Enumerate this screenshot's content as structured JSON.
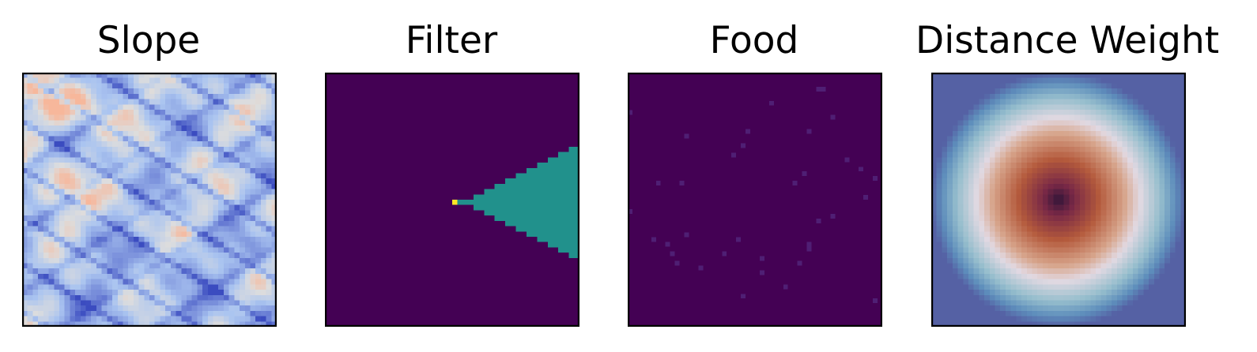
{
  "figure": {
    "background": "#ffffff"
  },
  "chart_data": [
    {
      "type": "heatmap",
      "title": "Slope",
      "grid_size": 48,
      "colormap": "coolwarm",
      "axes_visible": false,
      "description_of_field": "mostly light blue noisy terrain with darker blue ridges and faint orange patches in the upper-left and left-middle",
      "colors": {
        "low": "#3b4cc0",
        "mid": "#dddddd",
        "high": "#f7b79b"
      }
    },
    {
      "type": "heatmap",
      "title": "Filter",
      "grid_size": 48,
      "colormap": "viridis",
      "axes_visible": false,
      "colors": {
        "background": "#440154",
        "cone": "#21918c",
        "agent": "#fde725"
      },
      "agent_cell": {
        "col": 24,
        "row": 24
      },
      "cone": {
        "apex_col": 26,
        "end_col": 47,
        "half_width_at_end": 10,
        "center_row": 24
      }
    },
    {
      "type": "heatmap",
      "title": "Food",
      "grid_size": 48,
      "colormap": "viridis",
      "axes_visible": false,
      "colors": {
        "background": "#440154",
        "food": "#4f1f74"
      },
      "food_cells": [
        [
          30,
          6
        ],
        [
          40,
          3
        ],
        [
          43,
          9
        ],
        [
          38,
          12
        ],
        [
          25,
          12
        ],
        [
          24,
          15
        ],
        [
          22,
          17
        ],
        [
          12,
          13
        ],
        [
          6,
          23
        ],
        [
          11,
          23
        ],
        [
          35,
          23
        ],
        [
          5,
          35
        ],
        [
          8,
          36
        ],
        [
          9,
          38
        ],
        [
          12,
          34
        ],
        [
          15,
          41
        ],
        [
          20,
          38
        ],
        [
          23,
          35
        ],
        [
          28,
          42
        ],
        [
          33,
          45
        ],
        [
          36,
          40
        ],
        [
          38,
          36
        ],
        [
          43,
          30
        ],
        [
          46,
          18
        ],
        [
          50,
          26
        ],
        [
          49,
          20
        ],
        [
          52,
          22
        ],
        [
          52,
          48
        ],
        [
          10,
          40
        ],
        [
          0,
          29
        ],
        [
          24,
          47
        ],
        [
          28,
          39
        ],
        [
          0,
          8
        ],
        [
          41,
          3
        ],
        [
          38,
          37
        ],
        [
          40,
          31
        ],
        [
          37,
          21
        ]
      ]
    },
    {
      "type": "heatmap",
      "title": "Distance Weight",
      "grid_size": 48,
      "colormap": "twilight_shifted",
      "axes_visible": false,
      "description_of_field": "radially symmetric: dark center, reddish-brown inner disk, pale ring, blue outer band, purple corners",
      "colors": {
        "center": "#2f1438",
        "inner": "#b45a3c",
        "ring": "#e2d9e2",
        "outer": "#5d8dbb",
        "corner": "#3d1f5e"
      }
    }
  ]
}
